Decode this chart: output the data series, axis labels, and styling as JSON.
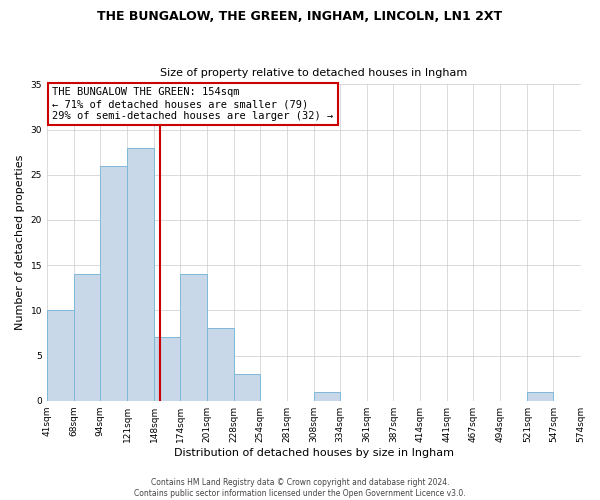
{
  "title": "THE BUNGALOW, THE GREEN, INGHAM, LINCOLN, LN1 2XT",
  "subtitle": "Size of property relative to detached houses in Ingham",
  "xlabel": "Distribution of detached houses by size in Ingham",
  "ylabel": "Number of detached properties",
  "bin_edges": [
    41,
    68,
    94,
    121,
    148,
    174,
    201,
    228,
    254,
    281,
    308,
    334,
    361,
    387,
    414,
    441,
    467,
    494,
    521,
    547,
    574
  ],
  "counts": [
    10,
    14,
    26,
    28,
    7,
    14,
    8,
    3,
    0,
    0,
    1,
    0,
    0,
    0,
    0,
    0,
    0,
    0,
    1,
    0
  ],
  "bar_color": "#c8d8e8",
  "bar_edge_color": "#7fb8d8",
  "marker_value": 154,
  "marker_color": "#cc0000",
  "ylim": [
    0,
    35
  ],
  "yticks": [
    0,
    5,
    10,
    15,
    20,
    25,
    30,
    35
  ],
  "annotation_title": "THE BUNGALOW THE GREEN: 154sqm",
  "annotation_line1": "← 71% of detached houses are smaller (79)",
  "annotation_line2": "29% of semi-detached houses are larger (32) →",
  "annotation_box_color": "#cc0000",
  "footer_line1": "Contains HM Land Registry data © Crown copyright and database right 2024.",
  "footer_line2": "Contains public sector information licensed under the Open Government Licence v3.0.",
  "tick_labels": [
    "41sqm",
    "68sqm",
    "94sqm",
    "121sqm",
    "148sqm",
    "174sqm",
    "201sqm",
    "228sqm",
    "254sqm",
    "281sqm",
    "308sqm",
    "334sqm",
    "361sqm",
    "387sqm",
    "414sqm",
    "441sqm",
    "467sqm",
    "494sqm",
    "521sqm",
    "547sqm",
    "574sqm"
  ],
  "title_fontsize": 9,
  "subtitle_fontsize": 8,
  "ylabel_fontsize": 8,
  "xlabel_fontsize": 8,
  "annotation_fontsize": 7.5,
  "tick_fontsize": 6.5,
  "footer_fontsize": 5.5
}
